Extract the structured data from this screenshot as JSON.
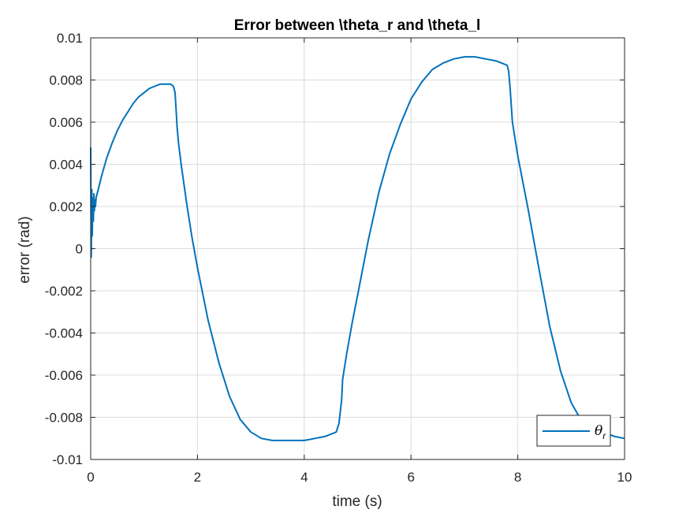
{
  "chart_data": {
    "type": "line",
    "title": "Error between \\theta_r and \\theta_l",
    "xlabel": "time (s)",
    "ylabel": "error (rad)",
    "xlim": [
      0,
      10
    ],
    "ylim": [
      -0.01,
      0.01
    ],
    "xticks": [
      0,
      2,
      4,
      6,
      8,
      10
    ],
    "xtick_labels": [
      "0",
      "2",
      "4",
      "6",
      "8",
      "10"
    ],
    "yticks": [
      -0.01,
      -0.008,
      -0.006,
      -0.004,
      -0.002,
      0,
      0.002,
      0.004,
      0.006,
      0.008,
      0.01
    ],
    "ytick_labels": [
      "-0.01",
      "-0.008",
      "-0.006",
      "-0.004",
      "-0.002",
      "0",
      "0.002",
      "0.004",
      "0.006",
      "0.008",
      "0.01"
    ],
    "grid": true,
    "legend_position": "bottom-right",
    "series": [
      {
        "name": "θ",
        "name_subscript": "r",
        "color": "#0072BD",
        "x": [
          0,
          0.01,
          0.02,
          0.03,
          0.04,
          0.05,
          0.06,
          0.07,
          0.08,
          0.09,
          0.1,
          0.15,
          0.2,
          0.3,
          0.4,
          0.5,
          0.6,
          0.7,
          0.8,
          0.9,
          1.0,
          1.1,
          1.2,
          1.3,
          1.4,
          1.5,
          1.55,
          1.58,
          1.6,
          1.62,
          1.65,
          1.7,
          1.8,
          1.9,
          2.0,
          2.2,
          2.4,
          2.6,
          2.8,
          3.0,
          3.2,
          3.4,
          3.6,
          3.8,
          4.0,
          4.2,
          4.4,
          4.6,
          4.65,
          4.7,
          4.72,
          4.75,
          4.8,
          4.9,
          5.0,
          5.2,
          5.4,
          5.6,
          5.8,
          6.0,
          6.2,
          6.4,
          6.6,
          6.8,
          7.0,
          7.2,
          7.4,
          7.6,
          7.7,
          7.8,
          7.83,
          7.86,
          7.9,
          7.95,
          8.0,
          8.2,
          8.4,
          8.6,
          8.8,
          9.0,
          9.2,
          9.4,
          9.6,
          9.8,
          10.0
        ],
        "y": [
          0.0048,
          -0.0004,
          0.0028,
          0.0006,
          0.0024,
          0.0013,
          0.0026,
          0.0018,
          0.0023,
          0.002,
          0.0024,
          0.0029,
          0.0034,
          0.0043,
          0.005,
          0.0056,
          0.0061,
          0.0065,
          0.0069,
          0.0072,
          0.0074,
          0.0076,
          0.0077,
          0.0078,
          0.0078,
          0.0078,
          0.0077,
          0.0074,
          0.0066,
          0.0057,
          0.0049,
          0.0039,
          0.0021,
          0.0005,
          -0.0009,
          -0.0034,
          -0.0054,
          -0.007,
          -0.0081,
          -0.0087,
          -0.009,
          -0.0091,
          -0.0091,
          -0.0091,
          -0.0091,
          -0.009,
          -0.0089,
          -0.0087,
          -0.0083,
          -0.0072,
          -0.0062,
          -0.0057,
          -0.0049,
          -0.0035,
          -0.0022,
          0.0004,
          0.0027,
          0.0045,
          0.0059,
          0.0071,
          0.0079,
          0.0085,
          0.0088,
          0.009,
          0.0091,
          0.0091,
          0.009,
          0.0089,
          0.0088,
          0.0087,
          0.0084,
          0.0075,
          0.006,
          0.0052,
          0.0044,
          0.0018,
          -0.001,
          -0.0037,
          -0.0058,
          -0.0073,
          -0.0082,
          -0.0085,
          -0.0087,
          -0.0089,
          -0.009
        ]
      }
    ]
  }
}
